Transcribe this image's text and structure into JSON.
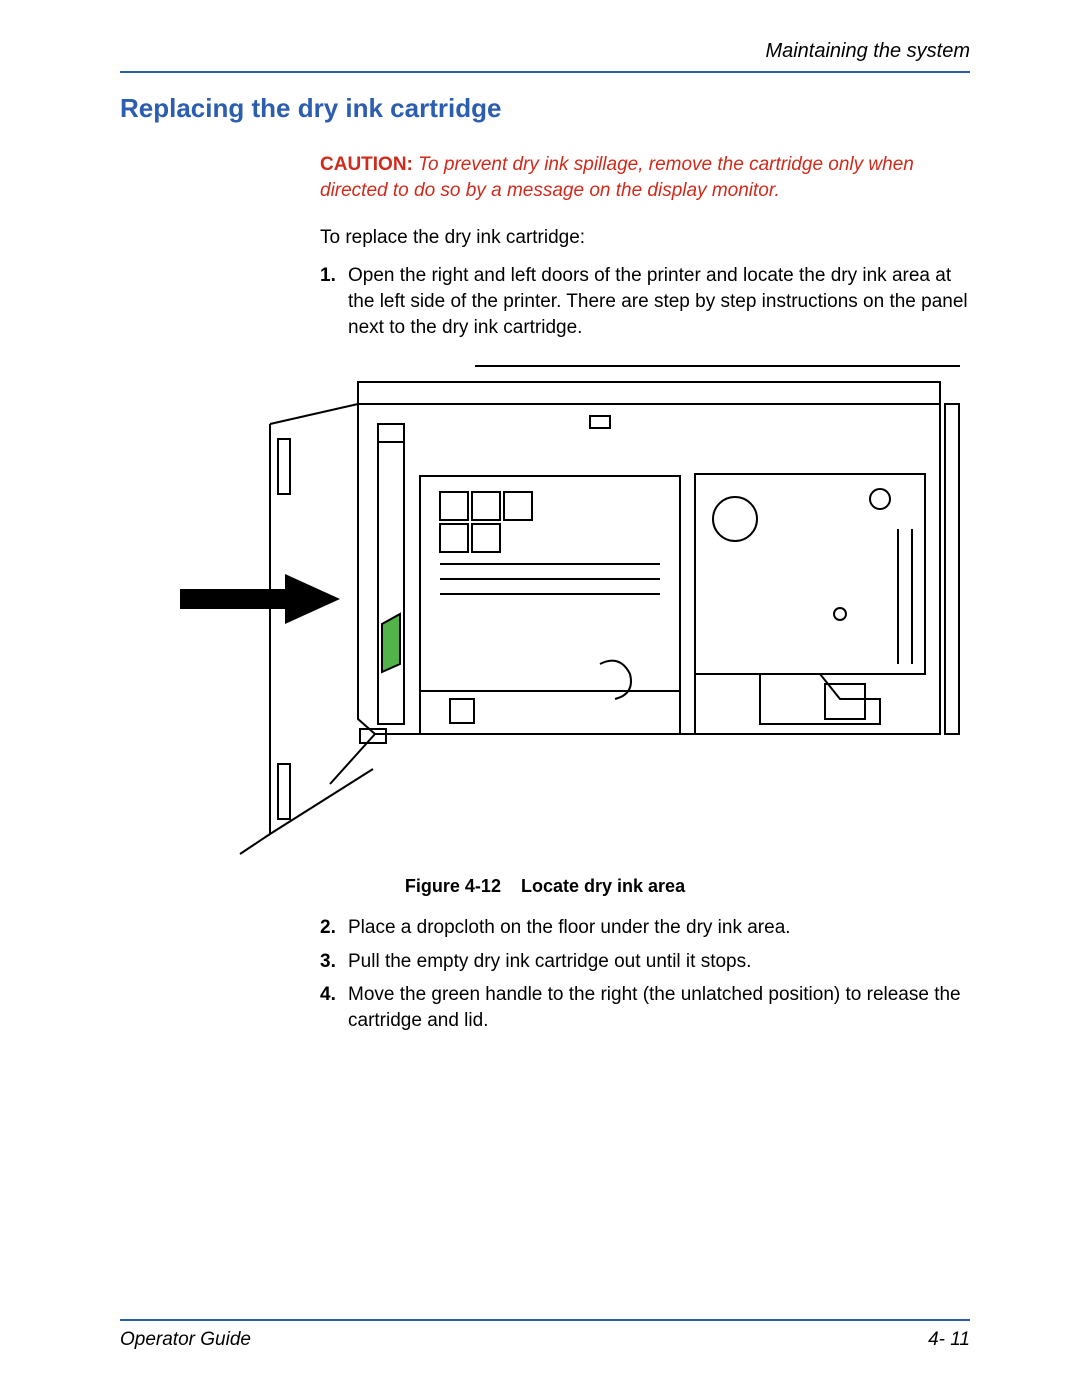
{
  "header": {
    "section_name": "Maintaining the system"
  },
  "title": "Replacing the dry ink cartridge",
  "caution": {
    "label": "CAUTION:",
    "text": "To prevent dry ink spillage, remove the cartridge only when directed to do so by a message on the display monitor."
  },
  "intro": "To replace the dry ink cartridge:",
  "steps_a": [
    {
      "n": "1.",
      "t": "Open the right and left doors of the printer and locate the dry ink area at the left side of the printer. There are step by step instructions on the panel next to the dry ink cartridge."
    }
  ],
  "figure": {
    "label": "Figure 4-12",
    "title": "Locate dry ink area",
    "colors": {
      "stroke": "#000000",
      "handle": "#52b34b",
      "arrow": "#000000",
      "bg": "#ffffff"
    }
  },
  "steps_b": [
    {
      "n": "2.",
      "t": "Place a dropcloth on the floor under the dry ink area."
    },
    {
      "n": "3.",
      "t": "Pull the empty dry ink cartridge out until it stops."
    },
    {
      "n": "4.",
      "t": "Move the green handle to the right (the unlatched position) to release the cartridge and lid."
    }
  ],
  "footer": {
    "guide": "Operator Guide",
    "page": "4- 11"
  }
}
